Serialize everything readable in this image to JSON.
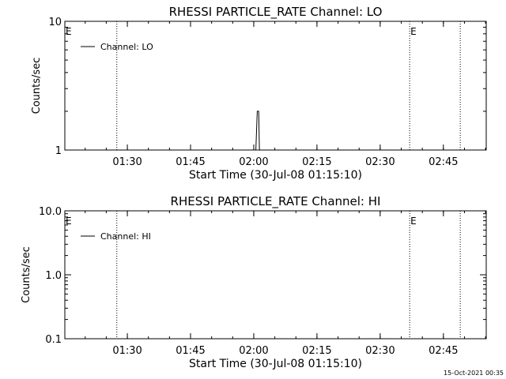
{
  "chart_data": [
    {
      "type": "line",
      "title": "RHESSI PARTICLE_RATE Channel: LO",
      "xlabel": "Start Time (30-Jul-08 01:15:10)",
      "ylabel": "Counts/sec",
      "xlim": [
        "01:15:10",
        "02:55:10"
      ],
      "ylim": [
        1,
        10
      ],
      "yscale": "log",
      "x_ticks": [
        "01:30",
        "01:45",
        "02:00",
        "02:15",
        "02:30",
        "02:45"
      ],
      "y_ticks": [
        "1",
        "10"
      ],
      "legend": {
        "placement": "top-left",
        "entries": [
          "Channel: LO"
        ]
      },
      "markers": [
        {
          "time": "01:15:10",
          "label": "E",
          "style": "none"
        },
        {
          "time": "01:27:30",
          "label": "",
          "style": "dotted"
        },
        {
          "time": "02:37:00",
          "label": "E",
          "style": "dotted"
        },
        {
          "time": "02:49:00",
          "label": "",
          "style": "dotted"
        }
      ],
      "series": [
        {
          "name": "Channel: LO",
          "x": [
            "02:00:00",
            "02:00:30",
            "02:00:50",
            "02:01:10",
            "02:01:20",
            "02:01:40"
          ],
          "y": [
            1,
            1,
            2,
            2,
            1,
            1
          ]
        }
      ]
    },
    {
      "type": "line",
      "title": "RHESSI PARTICLE_RATE Channel: HI",
      "xlabel": "Start Time (30-Jul-08 01:15:10)",
      "ylabel": "Counts/sec",
      "xlim": [
        "01:15:10",
        "02:55:10"
      ],
      "ylim": [
        0.1,
        10
      ],
      "yscale": "log",
      "x_ticks": [
        "01:30",
        "01:45",
        "02:00",
        "02:15",
        "02:30",
        "02:45"
      ],
      "y_ticks": [
        "0.1",
        "1.0",
        "10.0"
      ],
      "legend": {
        "placement": "top-left",
        "entries": [
          "Channel: HI"
        ]
      },
      "markers": [
        {
          "time": "01:15:10",
          "label": "E",
          "style": "none"
        },
        {
          "time": "01:27:30",
          "label": "",
          "style": "dotted"
        },
        {
          "time": "02:37:00",
          "label": "E",
          "style": "dotted"
        },
        {
          "time": "02:49:00",
          "label": "",
          "style": "dotted"
        }
      ],
      "series": [
        {
          "name": "Channel: HI",
          "x": [],
          "y": []
        }
      ]
    }
  ],
  "footer": {
    "timestamp": "15-Oct-2021 00:35"
  }
}
